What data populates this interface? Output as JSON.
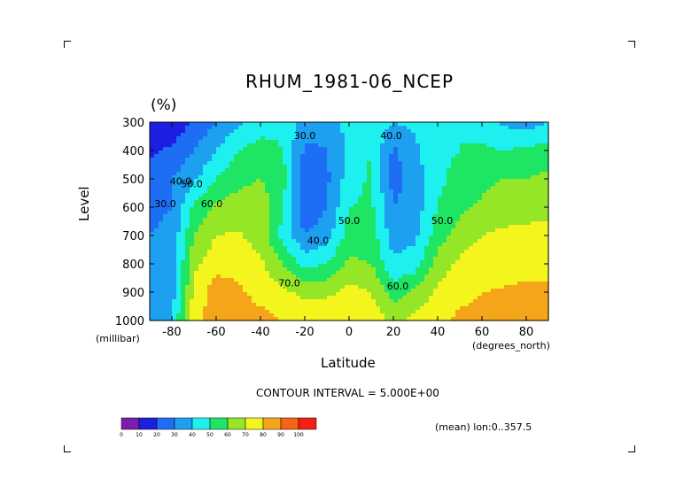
{
  "chart_data": {
    "type": "heatmap",
    "title": "RHUM_1981-06_NCEP",
    "units_label": "(%)",
    "ylabel": "Level",
    "yunit": "(millibar)",
    "xlabel": "Latitude",
    "xunit": "(degrees_north)",
    "x_ticks": [
      "-80",
      "-60",
      "-40",
      "-20",
      "0",
      "20",
      "40",
      "60",
      "80"
    ],
    "y_ticks": [
      "300",
      "400",
      "500",
      "600",
      "700",
      "800",
      "900",
      "1000"
    ],
    "xlim": [
      -90,
      90
    ],
    "ylim": [
      1000,
      300
    ],
    "contour_interval_text": "CONTOUR INTERVAL = 5.000E+00",
    "mean_text": "(mean) lon:0..357.5",
    "contour_labels": [
      {
        "text": "30.0",
        "lat": -83,
        "lev": 600
      },
      {
        "text": "40.0",
        "lat": -76,
        "lev": 520
      },
      {
        "text": "50.0",
        "lat": -71,
        "lev": 530
      },
      {
        "text": "60.0",
        "lat": -62,
        "lev": 600
      },
      {
        "text": "70.0",
        "lat": -27,
        "lev": 880
      },
      {
        "text": "30.0",
        "lat": -20,
        "lev": 360
      },
      {
        "text": "40.0",
        "lat": -14,
        "lev": 730
      },
      {
        "text": "50.0",
        "lat": 0,
        "lev": 660
      },
      {
        "text": "40.0",
        "lat": 19,
        "lev": 360
      },
      {
        "text": "50.0",
        "lat": 42,
        "lev": 660
      },
      {
        "text": "60.0",
        "lat": 22,
        "lev": 890
      }
    ],
    "colorbar": {
      "levels": [
        "0",
        "10",
        "20",
        "30",
        "40",
        "50",
        "60",
        "70",
        "80",
        "90",
        "100"
      ],
      "colors": [
        "#7e1cad",
        "#1e1ee0",
        "#1e6ef5",
        "#1ea0f0",
        "#1ef0f0",
        "#1ee664",
        "#96e628",
        "#f5f51e",
        "#f5a519",
        "#f56414",
        "#f51e14"
      ]
    },
    "levels_mb": [
      300,
      400,
      500,
      600,
      700,
      800,
      900,
      1000
    ],
    "latitudes": [
      -90,
      -80,
      -70,
      -60,
      -50,
      -40,
      -30,
      -20,
      -10,
      0,
      10,
      20,
      30,
      40,
      50,
      60,
      70,
      80,
      90
    ],
    "values": [
      [
        10,
        12,
        22,
        30,
        38,
        44,
        48,
        35,
        32,
        45,
        48,
        40,
        42,
        50,
        50,
        45,
        38,
        35,
        40
      ],
      [
        18,
        22,
        30,
        40,
        50,
        55,
        50,
        28,
        30,
        42,
        50,
        28,
        38,
        48,
        50,
        52,
        50,
        52,
        55
      ],
      [
        25,
        30,
        38,
        50,
        57,
        60,
        55,
        25,
        28,
        45,
        52,
        26,
        35,
        48,
        53,
        57,
        60,
        60,
        62
      ],
      [
        28,
        30,
        52,
        62,
        65,
        67,
        50,
        22,
        30,
        50,
        52,
        30,
        35,
        50,
        57,
        62,
        65,
        66,
        68
      ],
      [
        30,
        32,
        60,
        70,
        71,
        66,
        47,
        30,
        36,
        55,
        55,
        35,
        38,
        55,
        65,
        70,
        72,
        73,
        72
      ],
      [
        30,
        33,
        68,
        76,
        76,
        72,
        60,
        47,
        50,
        62,
        60,
        42,
        45,
        65,
        72,
        75,
        76,
        77,
        77
      ],
      [
        31,
        35,
        72,
        86,
        82,
        76,
        72,
        67,
        68,
        73,
        70,
        55,
        62,
        72,
        77,
        80,
        81,
        82,
        82
      ],
      [
        32,
        40,
        78,
        84,
        86,
        84,
        80,
        78,
        77,
        78,
        76,
        68,
        73,
        78,
        82,
        84,
        86,
        88,
        90
      ]
    ]
  }
}
